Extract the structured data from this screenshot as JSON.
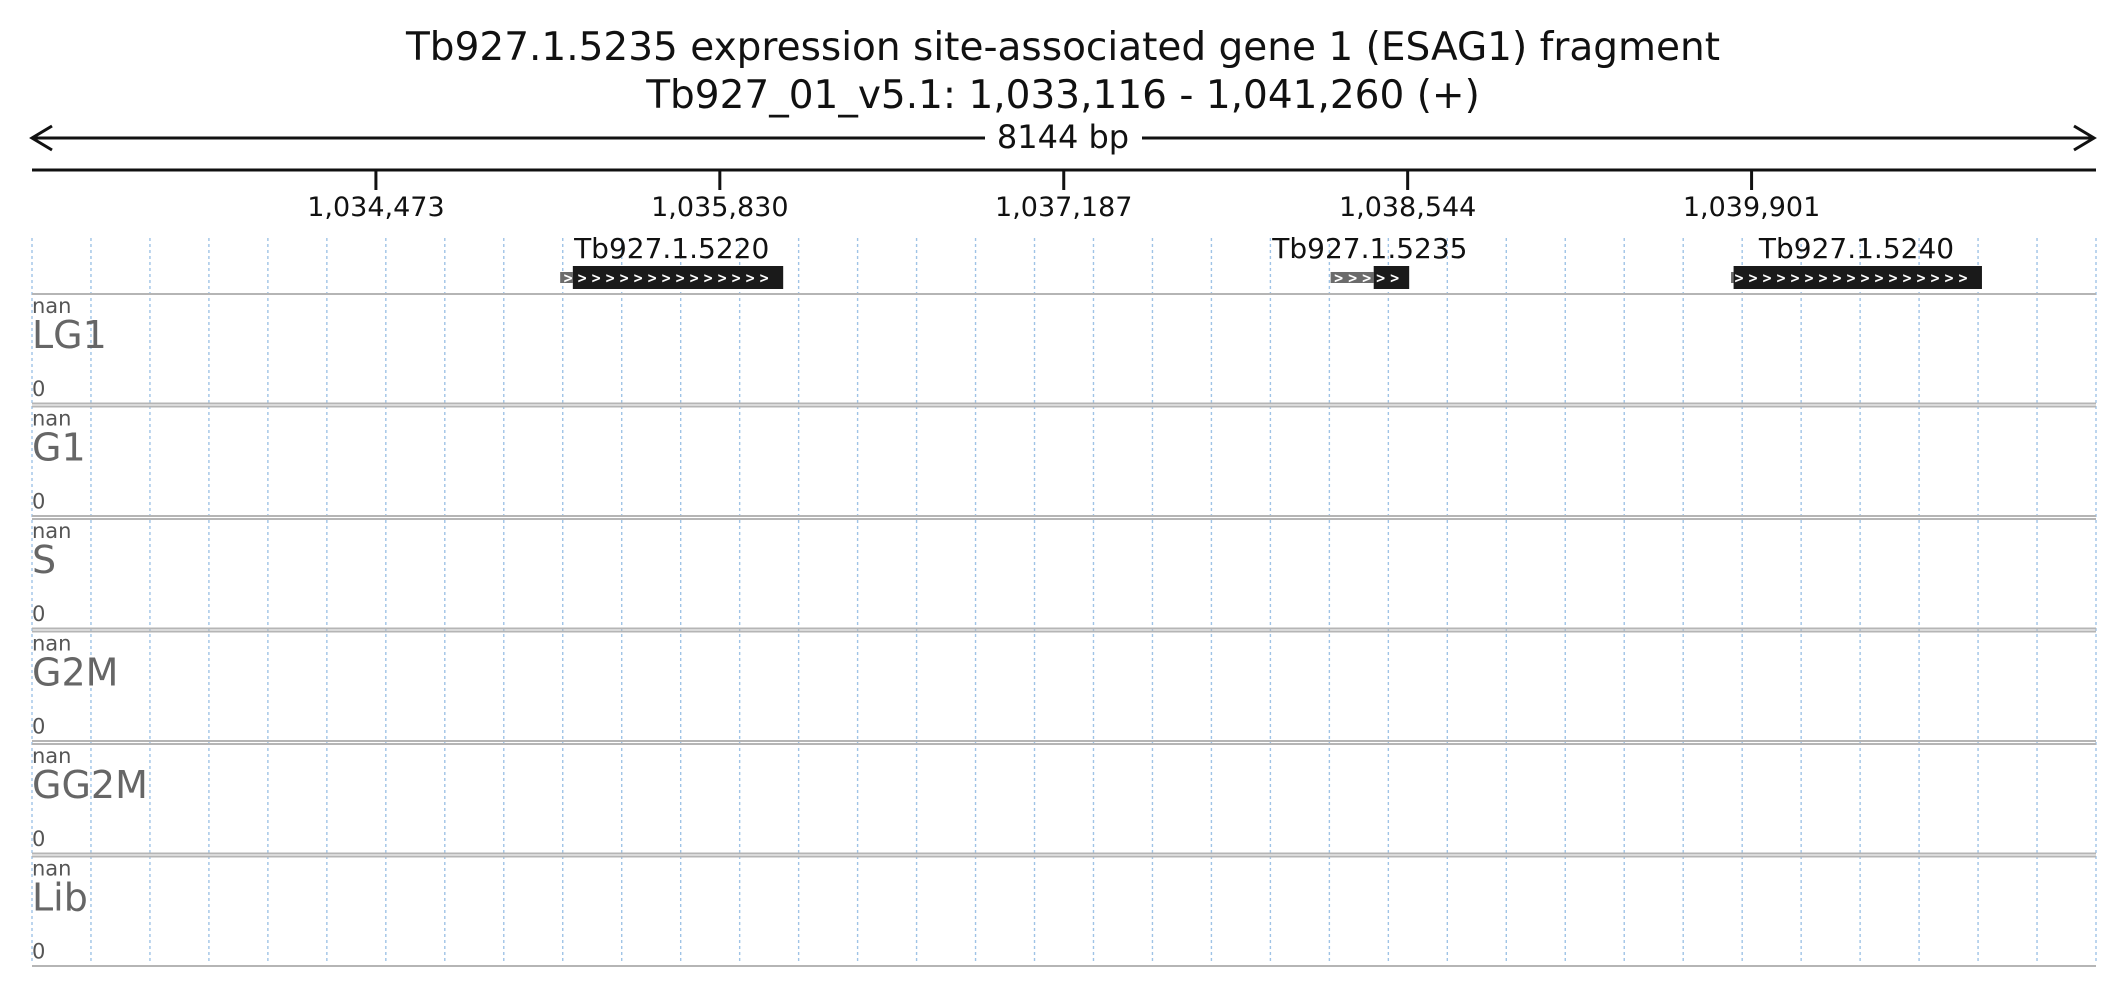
{
  "chart_data": {
    "type": "genome-track",
    "title": "Tb927.1.5235  expression site-associated gene 1 (ESAG1)  fragment",
    "subtitle": "Tb927_01_v5.1: 1,033,116 - 1,041,260 (+)",
    "span_label": "8144 bp",
    "region": {
      "start": 1033116,
      "end": 1041260
    },
    "ticks": [
      {
        "value": 1034473,
        "label": "1,034,473"
      },
      {
        "value": 1035830,
        "label": "1,035,830"
      },
      {
        "value": 1037187,
        "label": "1,037,187"
      },
      {
        "value": 1038544,
        "label": "1,038,544"
      },
      {
        "value": 1039901,
        "label": "1,039,901"
      }
    ],
    "genes": [
      {
        "name": "Tb927.1.5220",
        "start": 1035200,
        "end": 1036080,
        "utr5_end": 1035250,
        "strand": "+"
      },
      {
        "name": "Tb927.1.5235",
        "start": 1038240,
        "end": 1038550,
        "utr5_end": 1038410,
        "strand": "+"
      },
      {
        "name": "Tb927.1.5240",
        "start": 1039820,
        "end": 1040810,
        "utr5_end": 1039830,
        "strand": "+"
      }
    ],
    "tracks": [
      {
        "name": "LG1",
        "max": "nan",
        "min": "0"
      },
      {
        "name": "G1",
        "max": "nan",
        "min": "0"
      },
      {
        "name": "S",
        "max": "nan",
        "min": "0"
      },
      {
        "name": "G2M",
        "max": "nan",
        "min": "0"
      },
      {
        "name": "GG2M",
        "max": "nan",
        "min": "0"
      },
      {
        "name": "Lib",
        "max": "nan",
        "min": "0"
      }
    ],
    "colors": {
      "gene": "#1a1a1a",
      "utr": "#6b6b6b",
      "grid": "#9fc3e6",
      "track_border": "#b5b5b5"
    }
  }
}
